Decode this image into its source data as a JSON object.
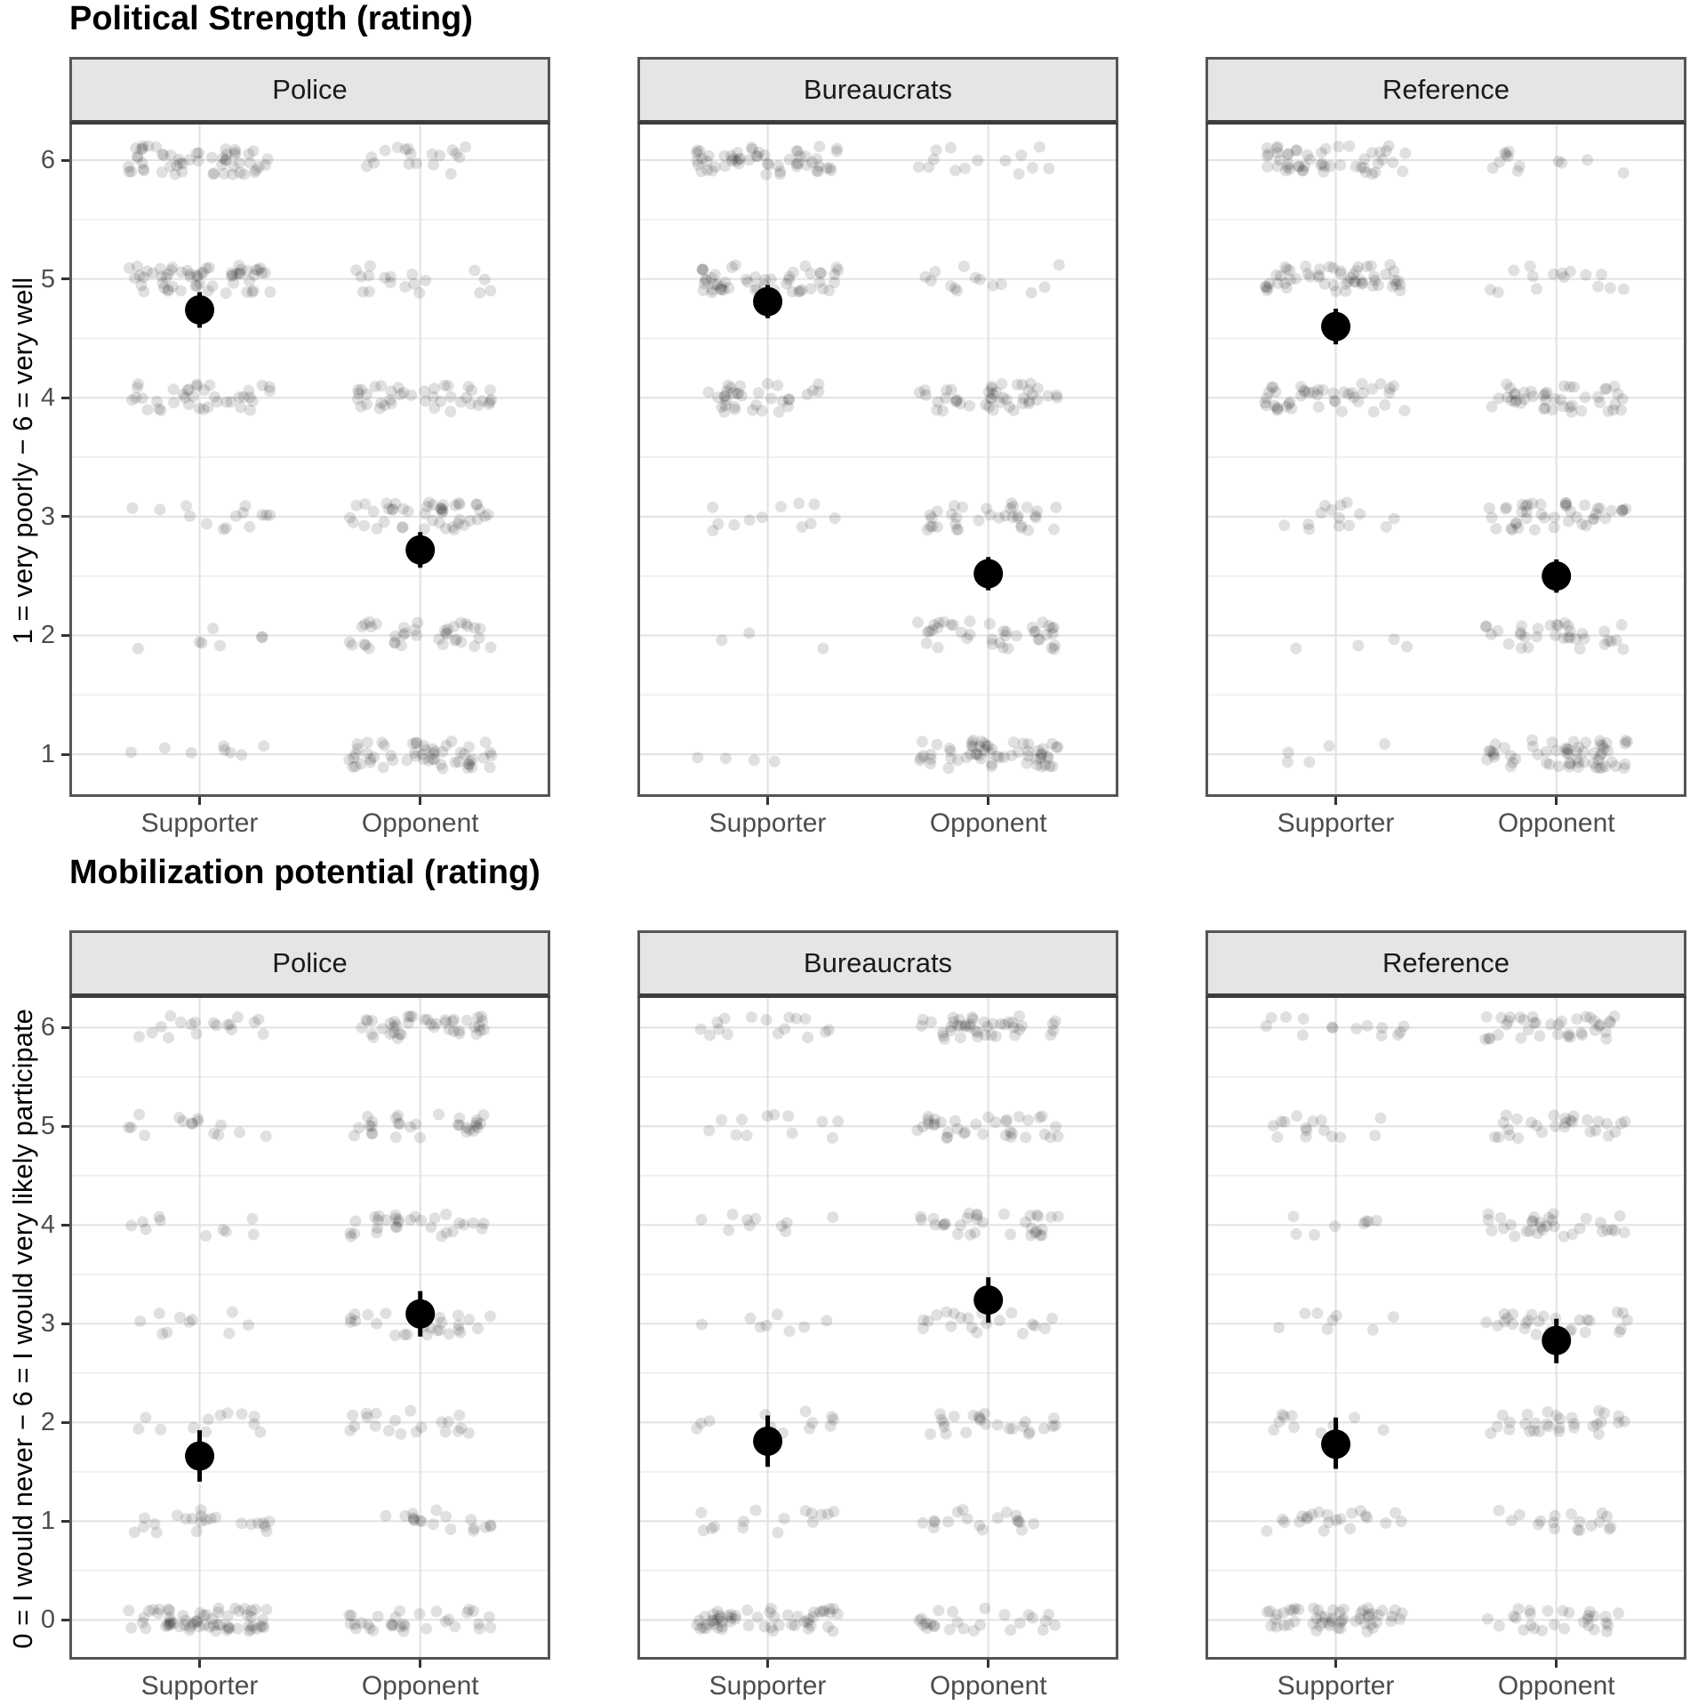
{
  "chart_data": {
    "type": "scatter",
    "subtype": "faceted-jitter-pointrange",
    "facet_columns": [
      "Police",
      "Bureaucrats",
      "Reference"
    ],
    "x_categories": [
      "Supporter",
      "Opponent"
    ],
    "legend": "none",
    "grid": "major integer lines and minor half-unit lines, light gray on white",
    "charts": [
      {
        "title": "Political Strength (rating)",
        "y_axis": {
          "label": "1 = very poorly − 6 = very well",
          "ticks": [
            6,
            5,
            4,
            3,
            2,
            1
          ],
          "range_shown": [
            0.64,
            6.3
          ]
        },
        "facets": [
          {
            "label": "Police",
            "groups": [
              {
                "category": "Supporter",
                "mean": 4.74,
                "ci_low": 4.59,
                "ci_high": 4.89,
                "jitter_counts": {
                  "6": 55,
                  "5": 58,
                  "4": 38,
                  "3": 14,
                  "2": 7,
                  "1": 8
                }
              },
              {
                "category": "Opponent",
                "mean": 2.72,
                "ci_low": 2.57,
                "ci_high": 2.87,
                "jitter_counts": {
                  "6": 18,
                  "5": 18,
                  "4": 40,
                  "3": 46,
                  "2": 38,
                  "1": 55
                }
              }
            ]
          },
          {
            "label": "Bureaucrats",
            "groups": [
              {
                "category": "Supporter",
                "mean": 4.81,
                "ci_low": 4.67,
                "ci_high": 4.95,
                "jitter_counts": {
                  "6": 55,
                  "5": 50,
                  "4": 34,
                  "3": 12,
                  "2": 3,
                  "1": 4
                }
              },
              {
                "category": "Opponent",
                "mean": 2.52,
                "ci_low": 2.38,
                "ci_high": 2.66,
                "jitter_counts": {
                  "6": 14,
                  "5": 14,
                  "4": 44,
                  "3": 34,
                  "2": 40,
                  "1": 60
                }
              }
            ]
          },
          {
            "label": "Reference",
            "groups": [
              {
                "category": "Supporter",
                "mean": 4.6,
                "ci_low": 4.45,
                "ci_high": 4.75,
                "jitter_counts": {
                  "6": 50,
                  "5": 55,
                  "4": 44,
                  "3": 14,
                  "2": 4,
                  "1": 5
                }
              },
              {
                "category": "Opponent",
                "mean": 2.5,
                "ci_low": 2.36,
                "ci_high": 2.64,
                "jitter_counts": {
                  "6": 12,
                  "5": 15,
                  "4": 44,
                  "3": 44,
                  "2": 34,
                  "1": 60
                }
              }
            ]
          }
        ]
      },
      {
        "title": "Mobilization potential (rating)",
        "y_axis": {
          "label": "0 = I would never − 6 = I would very likely participate",
          "ticks": [
            6,
            5,
            4,
            3,
            2,
            1,
            0
          ],
          "range_shown": [
            -0.4,
            6.3
          ]
        },
        "facets": [
          {
            "label": "Police",
            "groups": [
              {
                "category": "Supporter",
                "mean": 1.66,
                "ci_low": 1.4,
                "ci_high": 1.92,
                "jitter_counts": {
                  "6": 18,
                  "5": 15,
                  "4": 10,
                  "3": 10,
                  "2": 12,
                  "1": 22,
                  "0": 65
                }
              },
              {
                "category": "Opponent",
                "mean": 3.1,
                "ci_low": 2.87,
                "ci_high": 3.33,
                "jitter_counts": {
                  "6": 42,
                  "5": 30,
                  "4": 30,
                  "3": 25,
                  "2": 20,
                  "1": 18,
                  "0": 32
                }
              }
            ]
          },
          {
            "label": "Bureaucrats",
            "groups": [
              {
                "category": "Supporter",
                "mean": 1.81,
                "ci_low": 1.55,
                "ci_high": 2.07,
                "jitter_counts": {
                  "6": 16,
                  "5": 12,
                  "4": 10,
                  "3": 8,
                  "2": 12,
                  "1": 15,
                  "0": 55
                }
              },
              {
                "category": "Opponent",
                "mean": 3.24,
                "ci_low": 3.01,
                "ci_high": 3.47,
                "jitter_counts": {
                  "6": 42,
                  "5": 35,
                  "4": 32,
                  "3": 20,
                  "2": 25,
                  "1": 18,
                  "0": 25
                }
              }
            ]
          },
          {
            "label": "Reference",
            "groups": [
              {
                "category": "Supporter",
                "mean": 1.78,
                "ci_low": 1.53,
                "ci_high": 2.05,
                "jitter_counts": {
                  "6": 14,
                  "5": 15,
                  "4": 8,
                  "3": 8,
                  "2": 10,
                  "1": 22,
                  "0": 55
                }
              },
              {
                "category": "Opponent",
                "mean": 2.83,
                "ci_low": 2.6,
                "ci_high": 3.05,
                "jitter_counts": {
                  "6": 38,
                  "5": 28,
                  "4": 32,
                  "3": 28,
                  "2": 30,
                  "1": 18,
                  "0": 28
                }
              }
            ]
          }
        ]
      }
    ],
    "style": {
      "grid_major_color": "#e3e3e3",
      "grid_minor_color": "#efefef",
      "strip_background": "#e5e5e5",
      "panel_border_color": "#555555",
      "tick_mark_color": "#333333",
      "axis_text_color": "#4d4d4d",
      "jitter_point_color": "#000000",
      "jitter_point_opacity": 0.12,
      "mean_point_color": "#000000"
    }
  }
}
